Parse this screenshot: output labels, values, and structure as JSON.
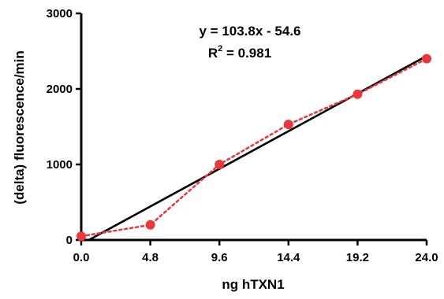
{
  "chart_data": {
    "type": "scatter",
    "xlabel": "ng hTXN1",
    "ylabel": "(delta) fluorescence/min",
    "xlim": [
      0,
      24
    ],
    "ylim": [
      0,
      3000
    ],
    "x_ticks": [
      "0.0",
      "4.8",
      "9.6",
      "14.4",
      "19.2",
      "24.0"
    ],
    "x_tick_values": [
      0,
      4.8,
      9.6,
      14.4,
      19.2,
      24.0
    ],
    "y_ticks": [
      "0",
      "1000",
      "2000",
      "3000"
    ],
    "y_tick_values": [
      0,
      1000,
      2000,
      3000
    ],
    "grid": false,
    "series": [
      {
        "x": [
          0,
          4.8,
          9.6,
          14.4,
          19.2,
          24.0
        ],
        "y": [
          50,
          200,
          1000,
          1530,
          1930,
          2400
        ],
        "color": "#e8383d",
        "marker": "circle",
        "line_style": "dotted"
      }
    ],
    "fit_line": {
      "slope": 103.8,
      "intercept": -54.6,
      "x_range": [
        0,
        24
      ],
      "color": "#000000"
    },
    "annotation": {
      "equation": "y = 103.8x - 54.6",
      "r2_prefix": "R",
      "r2_sup": "2",
      "r2_suffix": " = 0.981"
    }
  }
}
